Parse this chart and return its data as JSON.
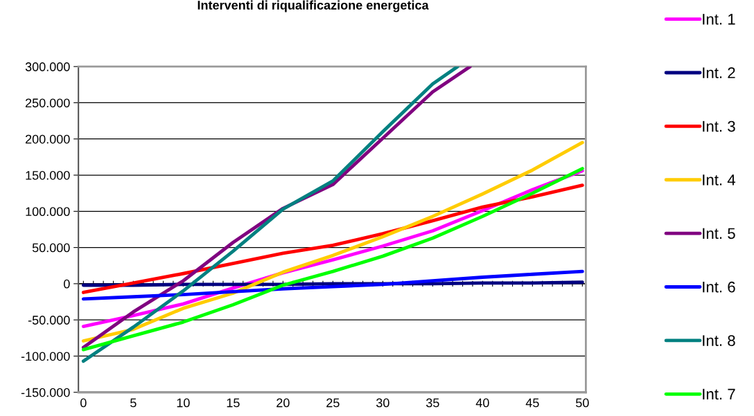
{
  "chart_data": {
    "type": "line",
    "title": "Interventi di riqualificazione energetica",
    "xlim": [
      -0.5,
      50.35
    ],
    "xticks": [
      {
        "value": 0,
        "label": "0"
      },
      {
        "value": 1,
        "label": null
      },
      {
        "value": 2,
        "label": null
      },
      {
        "value": 3,
        "label": null
      },
      {
        "value": 4,
        "label": null
      },
      {
        "value": 5,
        "label": "5"
      },
      {
        "value": 6,
        "label": null
      },
      {
        "value": 7,
        "label": null
      },
      {
        "value": 8,
        "label": null
      },
      {
        "value": 9,
        "label": null
      },
      {
        "value": 10,
        "label": "10"
      },
      {
        "value": 11,
        "label": null
      },
      {
        "value": 12,
        "label": null
      },
      {
        "value": 13,
        "label": null
      },
      {
        "value": 14,
        "label": null
      },
      {
        "value": 15,
        "label": "15"
      },
      {
        "value": 16,
        "label": null
      },
      {
        "value": 17,
        "label": null
      },
      {
        "value": 18,
        "label": null
      },
      {
        "value": 19,
        "label": null
      },
      {
        "value": 20,
        "label": "20"
      },
      {
        "value": 21,
        "label": null
      },
      {
        "value": 22,
        "label": null
      },
      {
        "value": 23,
        "label": null
      },
      {
        "value": 24,
        "label": null
      },
      {
        "value": 25,
        "label": "25"
      },
      {
        "value": 26,
        "label": null
      },
      {
        "value": 27,
        "label": null
      },
      {
        "value": 28,
        "label": null
      },
      {
        "value": 29,
        "label": null
      },
      {
        "value": 30,
        "label": "30"
      },
      {
        "value": 31,
        "label": null
      },
      {
        "value": 32,
        "label": null
      },
      {
        "value": 33,
        "label": null
      },
      {
        "value": 34,
        "label": null
      },
      {
        "value": 35,
        "label": "35"
      },
      {
        "value": 36,
        "label": null
      },
      {
        "value": 37,
        "label": null
      },
      {
        "value": 38,
        "label": null
      },
      {
        "value": 39,
        "label": null
      },
      {
        "value": 40,
        "label": "40"
      },
      {
        "value": 41,
        "label": null
      },
      {
        "value": 42,
        "label": null
      },
      {
        "value": 43,
        "label": null
      },
      {
        "value": 44,
        "label": null
      },
      {
        "value": 45,
        "label": "45"
      },
      {
        "value": 46,
        "label": null
      },
      {
        "value": 47,
        "label": null
      },
      {
        "value": 48,
        "label": null
      },
      {
        "value": 49,
        "label": null
      },
      {
        "value": 50,
        "label": "50"
      }
    ],
    "ylim": [
      -150000,
      300000
    ],
    "yticks": [
      {
        "value": -150000,
        "label": "-150.000"
      },
      {
        "value": -100000,
        "label": "-100.000"
      },
      {
        "value": -50000,
        "label": "-50.000"
      },
      {
        "value": 0,
        "label": "0"
      },
      {
        "value": 50000,
        "label": "50.000"
      },
      {
        "value": 100000,
        "label": "100.000"
      },
      {
        "value": 150000,
        "label": "150.000"
      },
      {
        "value": 200000,
        "label": "200.000"
      },
      {
        "value": 250000,
        "label": "250.000"
      },
      {
        "value": 300000,
        "label": "300.000"
      }
    ],
    "grid": "y",
    "legend": "right",
    "marker": "none",
    "line_style": "solid",
    "x": [
      0,
      5,
      10,
      15,
      20,
      25,
      30,
      35,
      40,
      45,
      50
    ],
    "series": [
      {
        "name": "Int. 1",
        "color": "#ff00ff",
        "values": [
          -59000,
          -44000,
          -28000,
          -6000,
          15000,
          33000,
          52000,
          73000,
          101000,
          130000,
          156000
        ]
      },
      {
        "name": "Int. 2",
        "color": "#000080",
        "values": [
          -2000,
          -2000,
          -1000,
          -1000,
          -1000,
          0,
          0,
          0,
          1000,
          1000,
          2000
        ]
      },
      {
        "name": "Int. 3",
        "color": "#ff0000",
        "values": [
          -12000,
          1000,
          14000,
          28000,
          42000,
          53000,
          69000,
          87000,
          106000,
          120000,
          136000
        ]
      },
      {
        "name": "Int. 4",
        "color": "#ffcc00",
        "values": [
          -79000,
          -63000,
          -34000,
          -13000,
          16000,
          39000,
          65000,
          93000,
          124000,
          157000,
          195000
        ]
      },
      {
        "name": "Int. 5",
        "color": "#800080",
        "x": [
          0,
          5,
          10,
          15,
          20,
          25,
          30,
          35,
          38.75
        ],
        "values": [
          -88000,
          -39000,
          4000,
          57000,
          104000,
          137000,
          201000,
          265000,
          300000
        ]
      },
      {
        "name": "Int. 6",
        "color": "#0000ff",
        "values": [
          -21000,
          -18000,
          -15000,
          -11000,
          -7000,
          -4000,
          -1000,
          4000,
          9000,
          13000,
          17000
        ]
      },
      {
        "name": "Int. 8",
        "color": "#008080",
        "x": [
          0,
          5,
          10,
          15,
          20,
          25,
          30,
          35,
          37.5
        ],
        "values": [
          -107000,
          -60000,
          -10000,
          45000,
          103000,
          142000,
          210000,
          276000,
          300000
        ]
      },
      {
        "name": "Int. 7",
        "color": "#00ff00",
        "values": [
          -91000,
          -72000,
          -53000,
          -29000,
          -2000,
          17000,
          38000,
          63000,
          93000,
          125000,
          159000
        ]
      }
    ]
  }
}
